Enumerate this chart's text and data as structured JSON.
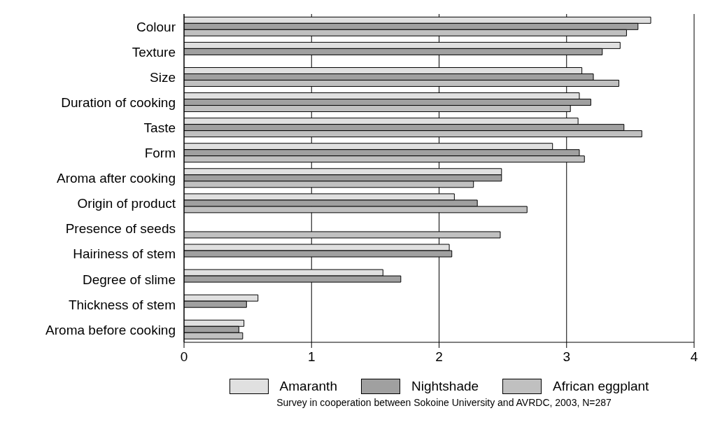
{
  "chart_data": {
    "type": "bar",
    "orientation": "horizontal",
    "categories": [
      "Colour",
      "Texture",
      "Size",
      "Duration of cooking",
      "Taste",
      "Form",
      "Aroma after cooking",
      "Origin of product",
      "Presence of seeds",
      "Hairiness of stem",
      "Degree of slime",
      "Thickness of stem",
      "Aroma before cooking"
    ],
    "series": [
      {
        "name": "Amaranth",
        "color": "#e0e0e0",
        "values": [
          3.66,
          3.42,
          3.12,
          3.1,
          3.09,
          2.89,
          2.49,
          2.12,
          null,
          2.08,
          1.56,
          0.58,
          0.47
        ]
      },
      {
        "name": "Nightshade",
        "color": "#a0a0a0",
        "values": [
          3.56,
          3.28,
          3.21,
          3.19,
          3.45,
          3.1,
          2.49,
          2.3,
          null,
          2.1,
          1.7,
          0.49,
          0.43
        ]
      },
      {
        "name": "African eggplant",
        "color": "#c0c0c0",
        "values": [
          3.47,
          null,
          3.41,
          3.03,
          3.59,
          3.14,
          2.27,
          2.69,
          2.48,
          null,
          null,
          null,
          0.46
        ]
      }
    ],
    "xlim": [
      0,
      4
    ],
    "xticks": [
      0,
      1,
      2,
      3,
      4
    ],
    "grid": "x",
    "legend": "bottom",
    "annotations": [
      "Survey in cooperation between Sokoine University and AVRDC, 2003, N=287"
    ]
  }
}
